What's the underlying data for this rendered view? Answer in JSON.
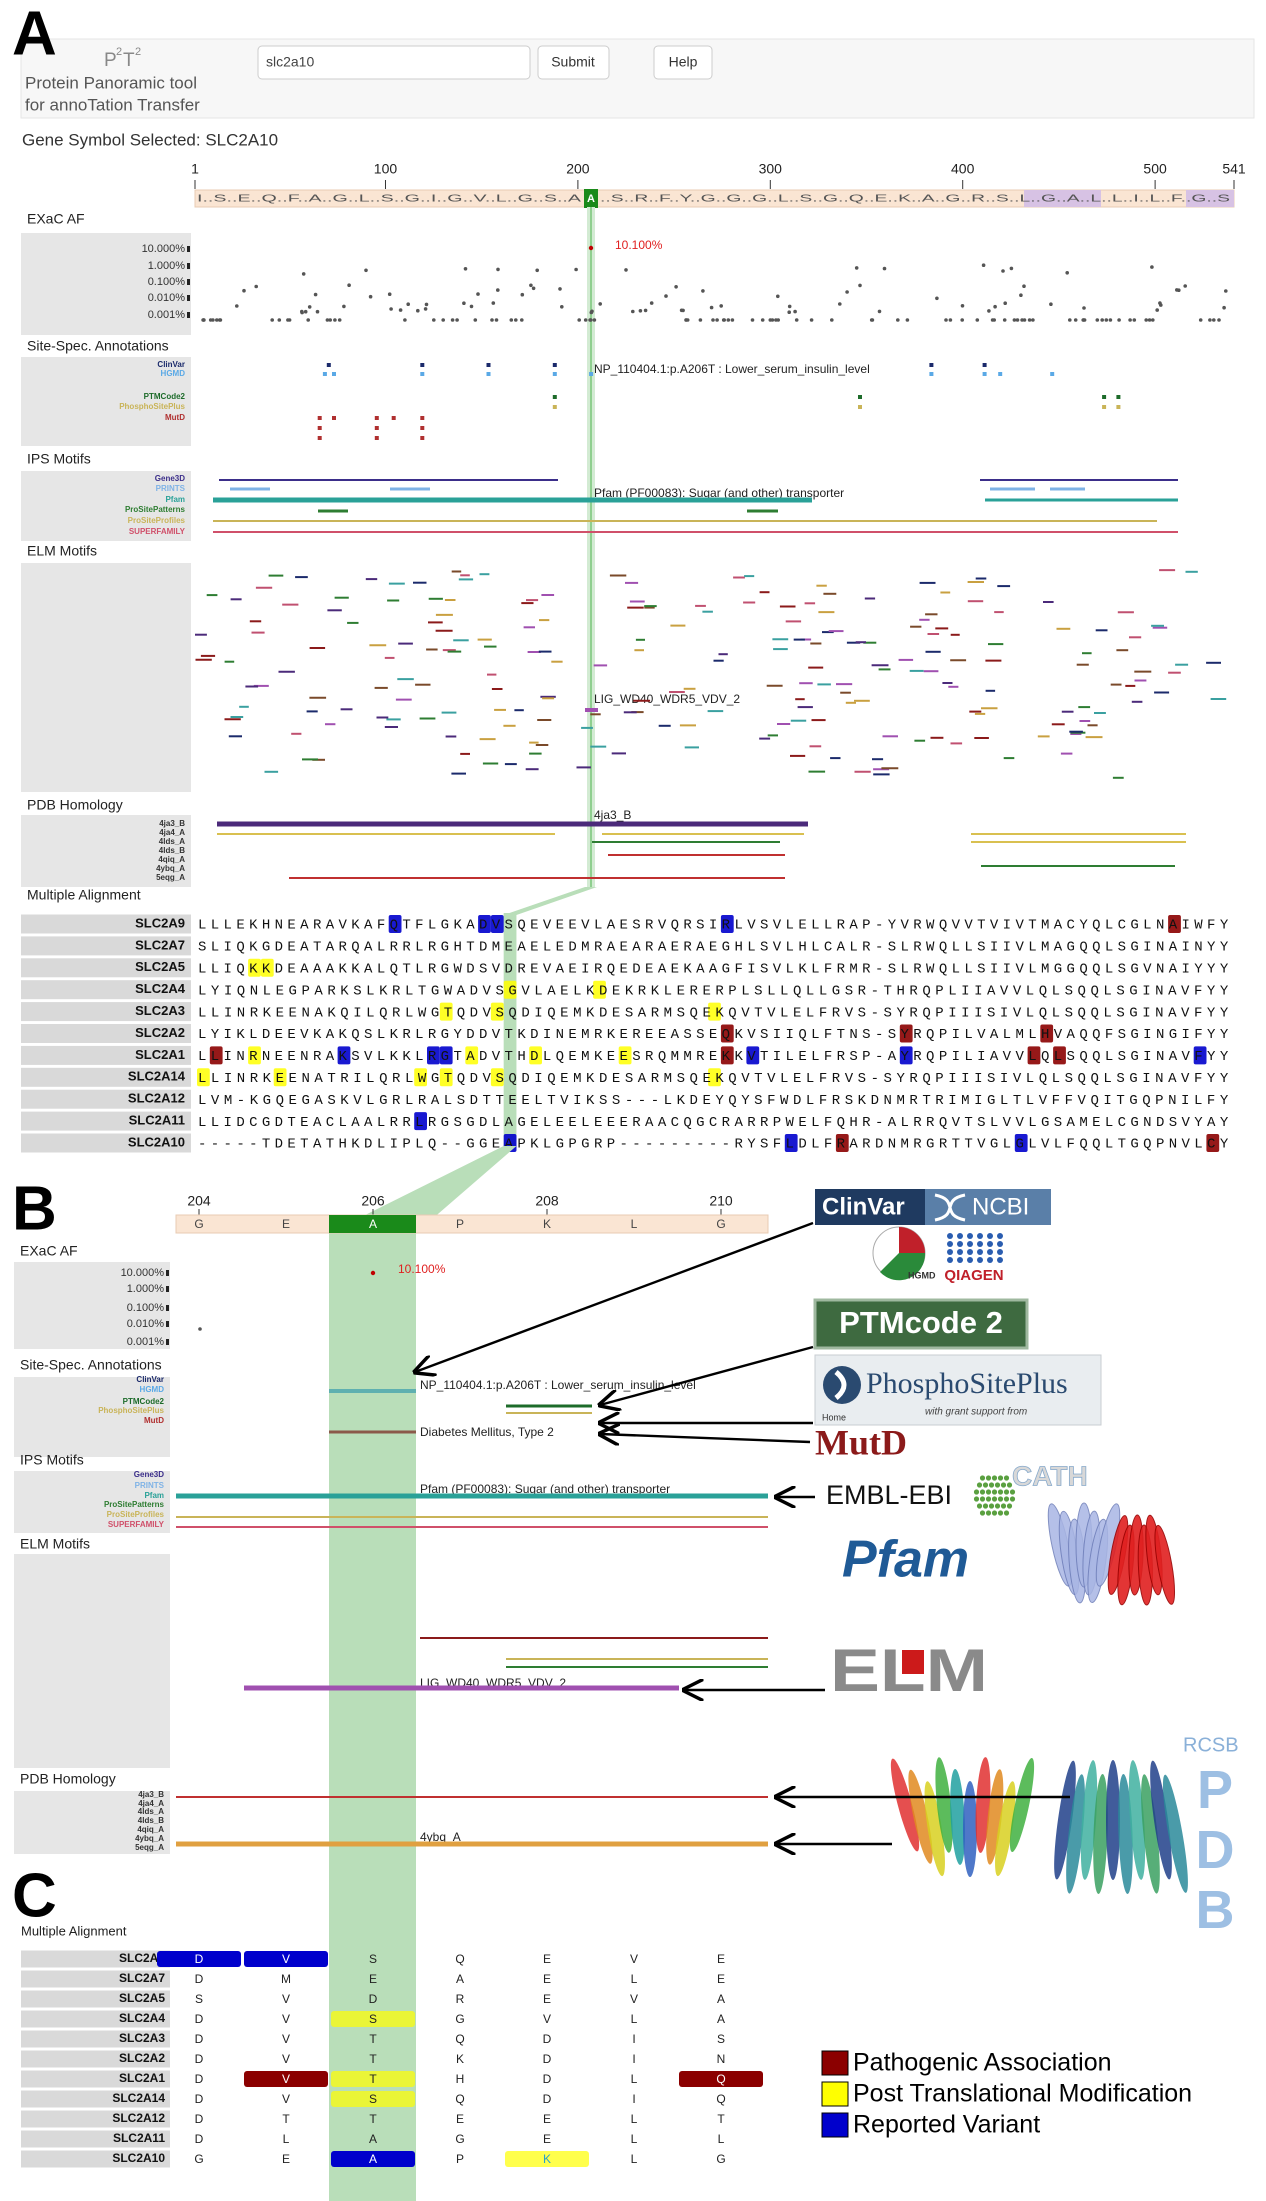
{
  "panel_labels": [
    "A",
    "B",
    "C"
  ],
  "header": {
    "logo": [
      "P",
      "2",
      "T",
      "2"
    ],
    "subtitle": [
      "Protein Panoramic tool",
      "for annoTation Transfer"
    ],
    "search_value": "slc2a10",
    "submit": "Submit",
    "help": "Help"
  },
  "gene_symbol": "Gene Symbol Selected: SLC2A10",
  "panel_a": {
    "xlim": [
      1,
      541
    ],
    "ticks": [
      1,
      100,
      200,
      300,
      400,
      500,
      541
    ],
    "residues_left": "I..S..E..Q..F..A..G..L..S..G..I..G..V..L..G..S..A",
    "selected_residue": "A",
    "residues_right": "..S..R..F..Y..G..G..G..L..S..G..Q..E..K..A..G..R..S..L..G..A..L..L..I..L..F..G..S",
    "tracks": [
      {
        "title": "EXaC AF",
        "labels": [
          "10.000%",
          "1.000%",
          "0.100%",
          "0.010%",
          "0.001%"
        ],
        "label_colors": [
          "#333333",
          "#333333",
          "#333333",
          "#333333",
          "#333333"
        ],
        "notes": [
          "10.100%"
        ]
      },
      {
        "title": "Site-Spec. Annotations",
        "labels": [
          "ClinVar",
          "HGMD",
          "PTMCode2",
          "PhosphoSitePlus",
          "MutD"
        ],
        "label_colors": [
          "#1b2a6b",
          "#5aa9e6",
          "#1d6b2a",
          "#c9b458",
          "#b03030"
        ],
        "notes": [
          "NP_110404.1:p.A206T : Lower_serum_insulin_level"
        ]
      },
      {
        "title": "IPS Motifs",
        "labels": [
          "Gene3D",
          "PRINTS",
          "Pfam",
          "ProSitePatterns",
          "ProSiteProfiles",
          "SUPERFAMILY"
        ],
        "label_colors": [
          "#3b2e8a",
          "#7fb3e6",
          "#2aa198",
          "#2e7d32",
          "#c9b458",
          "#d0506a"
        ],
        "notes": [
          "Pfam (PF00083): Sugar (and other) transporter"
        ]
      },
      {
        "title": "ELM Motifs",
        "notes": [
          "LIG_WD40_WDR5_VDV_2"
        ]
      },
      {
        "title": "PDB Homology",
        "labels": [
          "4ja3_B",
          "4ja4_A",
          "4lds_A",
          "4lds_B",
          "4qiq_A",
          "4ybq_A",
          "5eqg_A"
        ],
        "label_colors": [
          "#333333",
          "#333333",
          "#333333",
          "#333333",
          "#333333",
          "#333333",
          "#333333"
        ],
        "notes": [
          "4ja3_B"
        ]
      }
    ],
    "alignment": {
      "title": "Multiple Alignment",
      "rows": [
        {
          "gene": "SLC2A9",
          "sequence": "LLLEKHNEARAVKAFQTFLGKADVSQEVEEVLAESRVQRSIRLVSVLELLRAP-YVRWQVVTVIVTMACYQLCGLNAIWFY",
          "highlights": [
            [
              15,
              2
            ],
            [
              22,
              2
            ],
            [
              23,
              2
            ],
            [
              41,
              2
            ],
            [
              76,
              0
            ]
          ]
        },
        {
          "gene": "SLC2A7",
          "sequence": "SLIQKGDEATARQALRRLRGHTDMEAELEDMRAEARAERAEGHLSVLHLCALR-SLRWQLLSIIVLMAGQQLSGINAINYY",
          "highlights": []
        },
        {
          "gene": "SLC2A5",
          "sequence": "LLIQKKDEAAAKKALQTLRGWDSVDREVAEIRQEDEAEKAAGFISVLKLFRMR-SLRWQLLSIIVLMGGQQLSGVNAIYYY",
          "highlights": [
            [
              4,
              1
            ],
            [
              5,
              1
            ]
          ]
        },
        {
          "gene": "SLC2A4",
          "sequence": "LYIQNLEGPARKSLKRLTGWADVSGVLAELKDEKRKLERERPLSLLQLLGSR-THRQPLIIAVVLQLSQQLSGINAVFYY",
          "highlights": [
            [
              24,
              1
            ],
            [
              31,
              1
            ]
          ]
        },
        {
          "gene": "SLC2A3",
          "sequence": "LLINRKEENAKQILQRLWGTQDVSQDIQEMKDESARMSQEKQVTVLELFRVS-SYRQPIIISIVLQLSQQLSGINAVFYY",
          "highlights": [
            [
              19,
              1
            ],
            [
              23,
              1
            ],
            [
              40,
              1
            ]
          ]
        },
        {
          "gene": "SLC2A2",
          "sequence": "LYIKLDEEVKAKQSLKRLRGYDDVTKDINEMRKEREEASSEQKVSIIQLFTNS-SYRQPILVALMLHVAQQFSGINGIFYY",
          "highlights": [
            [
              41,
              0
            ],
            [
              55,
              0
            ],
            [
              66,
              0
            ]
          ]
        },
        {
          "gene": "SLC2A1",
          "sequence": "LLINRNEENRAKSVLKKLRGTADVTHDLQEMKEESRQMMREKKVTILELFRSP-AYRQPILIAVVLQLSQQLSGINAVFYY",
          "highlights": [
            [
              1,
              0
            ],
            [
              4,
              1
            ],
            [
              11,
              2
            ],
            [
              18,
              2
            ],
            [
              19,
              2
            ],
            [
              21,
              1
            ],
            [
              26,
              1
            ],
            [
              33,
              1
            ],
            [
              41,
              0
            ],
            [
              43,
              2
            ],
            [
              55,
              2
            ],
            [
              65,
              0
            ],
            [
              67,
              0
            ],
            [
              78,
              2
            ]
          ]
        },
        {
          "gene": "SLC2A14",
          "sequence": "LLINRKEENATRILQRLWGTQDVSQDIQEMKDESARMSQEKQVTVLELFRVS-SYRQPIIISIVLQLSQQLSGINAVFYY",
          "highlights": [
            [
              0,
              1
            ],
            [
              6,
              1
            ],
            [
              17,
              1
            ],
            [
              19,
              1
            ],
            [
              23,
              1
            ],
            [
              40,
              1
            ]
          ]
        },
        {
          "gene": "SLC2A12",
          "sequence": "LVM-KGQEGASKVLGRLRALSDTTEELTVIKSS---LKDEYQYSFWDLFRSKDNMRTRIMIGLTLVFFVQITGQPNILFY",
          "highlights": []
        },
        {
          "gene": "SLC2A11",
          "sequence": "LLIDCGDTEACLAALRRLRGSGDLAGELEELEEERAACQGCRARRPWELFQHR-ALRRQVTSLVVLGSAMELCGNDSVYAY",
          "highlights": [
            [
              17,
              2
            ]
          ]
        },
        {
          "gene": "SLC2A10",
          "sequence": "-----TDETATHKDLIPLQ--GGEAPKLGPGRP---------RYSFLDLFRARDNMRGRTTVGLGLVLFQQLTGQPNVLCY",
          "highlights": [
            [
              24,
              2
            ],
            [
              46,
              2
            ],
            [
              50,
              0
            ],
            [
              64,
              2
            ],
            [
              79,
              0
            ]
          ]
        }
      ]
    }
  },
  "panel_b": {
    "xlim": [
      203.5,
      210.5
    ],
    "ticks": [
      204,
      206,
      208,
      210
    ],
    "residues": [
      "G",
      "E",
      "A",
      "P",
      "K",
      "L",
      "G"
    ],
    "tracks": [
      {
        "title": "EXaC AF",
        "labels": [
          "10.000%",
          "1.000%",
          "0.100%",
          "0.010%",
          "0.001%"
        ],
        "label_colors": [
          "#333333",
          "#333333",
          "#333333",
          "#333333",
          "#333333"
        ],
        "notes": [
          "10.100%"
        ]
      },
      {
        "title": "Site-Spec. Annotations",
        "labels": [
          "ClinVar",
          "HGMD",
          "PTMCode2",
          "PhosphoSitePlus",
          "MutD"
        ],
        "label_colors": [
          "#1b2a6b",
          "#5aa9e6",
          "#1d6b2a",
          "#c9b458",
          "#b03030"
        ],
        "notes": [
          "NP_110404.1:p.A206T : Lower_serum_insulin_level",
          "Diabetes Mellitus, Type 2"
        ]
      },
      {
        "title": "IPS Motifs",
        "labels": [
          "Gene3D",
          "PRINTS",
          "Pfam",
          "ProSitePatterns",
          "ProSiteProfiles",
          "SUPERFAMILY"
        ],
        "label_colors": [
          "#3b2e8a",
          "#7fb3e6",
          "#2aa198",
          "#2e7d32",
          "#c9b458",
          "#d0506a"
        ],
        "notes": [
          "Pfam (PF00083): Sugar (and other) transporter"
        ]
      },
      {
        "title": "ELM Motifs",
        "notes": [
          "LIG_WD40_WDR5_VDV_2"
        ]
      },
      {
        "title": "PDB Homology",
        "labels": [
          "4ja3_B",
          "4ja4_A",
          "4lds_A",
          "4lds_B",
          "4qiq_A",
          "4ybq_A",
          "5eqg_A"
        ],
        "label_colors": [
          "#333333",
          "#333333",
          "#333333",
          "#333333",
          "#333333",
          "#333333",
          "#333333"
        ],
        "notes": [
          "4ybq_A"
        ]
      }
    ]
  },
  "panel_c": {
    "title": "Multiple Alignment",
    "rows": [
      {
        "gene": "SLC2A9",
        "residues": [
          "D",
          "V",
          "S",
          "Q",
          "E",
          "V",
          "E"
        ],
        "highlights": [
          [
            0,
            2
          ],
          [
            1,
            2
          ]
        ]
      },
      {
        "gene": "SLC2A7",
        "residues": [
          "D",
          "M",
          "E",
          "A",
          "E",
          "L",
          "E"
        ],
        "highlights": []
      },
      {
        "gene": "SLC2A5",
        "residues": [
          "S",
          "V",
          "D",
          "R",
          "E",
          "V",
          "A"
        ],
        "highlights": []
      },
      {
        "gene": "SLC2A4",
        "residues": [
          "D",
          "V",
          "S",
          "G",
          "V",
          "L",
          "A"
        ],
        "highlights": [
          [
            2,
            1
          ]
        ]
      },
      {
        "gene": "SLC2A3",
        "residues": [
          "D",
          "V",
          "T",
          "Q",
          "D",
          "I",
          "S"
        ],
        "highlights": []
      },
      {
        "gene": "SLC2A2",
        "residues": [
          "D",
          "V",
          "T",
          "K",
          "D",
          "I",
          "N"
        ],
        "highlights": []
      },
      {
        "gene": "SLC2A1",
        "residues": [
          "D",
          "V",
          "T",
          "H",
          "D",
          "L",
          "Q"
        ],
        "highlights": [
          [
            1,
            0
          ],
          [
            2,
            1
          ],
          [
            6,
            0
          ]
        ]
      },
      {
        "gene": "SLC2A14",
        "residues": [
          "D",
          "V",
          "S",
          "Q",
          "D",
          "I",
          "Q"
        ],
        "highlights": [
          [
            2,
            1
          ]
        ]
      },
      {
        "gene": "SLC2A12",
        "residues": [
          "D",
          "T",
          "T",
          "E",
          "E",
          "L",
          "T"
        ],
        "highlights": []
      },
      {
        "gene": "SLC2A11",
        "residues": [
          "D",
          "L",
          "A",
          "G",
          "E",
          "L",
          "L"
        ],
        "highlights": []
      },
      {
        "gene": "SLC2A10",
        "residues": [
          "G",
          "E",
          "A",
          "P",
          "K",
          "L",
          "G"
        ],
        "highlights": [
          [
            2,
            2
          ],
          [
            4,
            1
          ]
        ]
      }
    ],
    "legend": [
      {
        "label": "Pathogenic Association",
        "color": "#8b0000"
      },
      {
        "label": "Post Translational Modification",
        "color": "#ffff00"
      },
      {
        "label": "Reported Variant",
        "color": "#0000cc"
      }
    ]
  },
  "logos": {
    "clinvar": "ClinVar",
    "ncbi": "NCBI",
    "hgmd": "HGMD",
    "qiagen": "QIAGEN",
    "ptmcode": "PTMcode 2",
    "phosphosite": "PhosphoSitePlus",
    "grant": "with grant support from",
    "home": "Home",
    "mutd": "MutD",
    "embl": "EMBL-EBI",
    "pfam": "Pfam",
    "cath": "CATH",
    "elm": "ELM",
    "rcsb": "RCSB",
    "pdb": "PDB"
  }
}
